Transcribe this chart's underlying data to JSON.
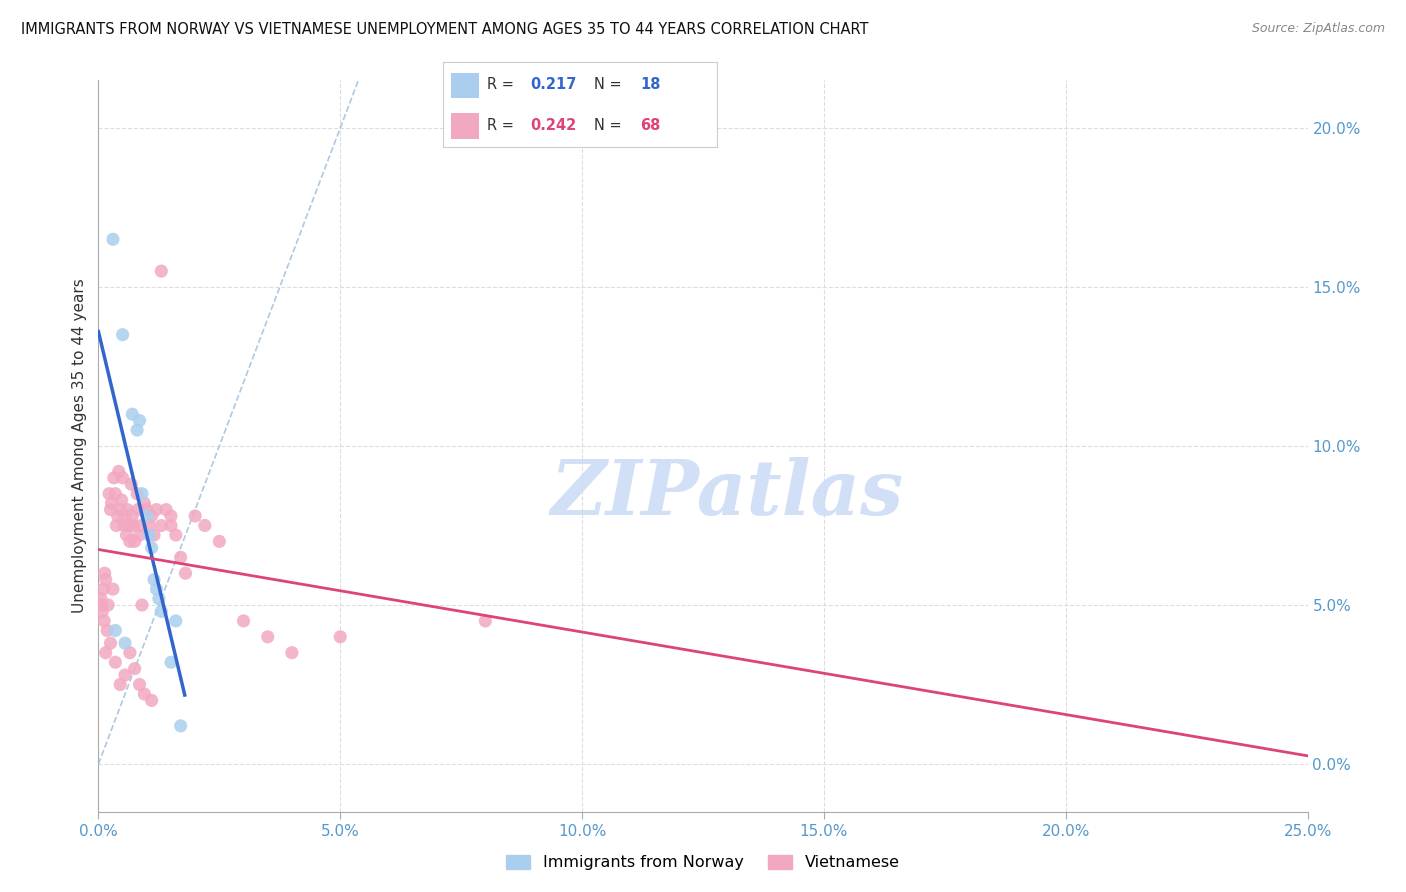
{
  "title": "IMMIGRANTS FROM NORWAY VS VIETNAMESE UNEMPLOYMENT AMONG AGES 35 TO 44 YEARS CORRELATION CHART",
  "source": "Source: ZipAtlas.com",
  "ylabel": "Unemployment Among Ages 35 to 44 years",
  "right_yticks": [
    0.0,
    5.0,
    10.0,
    15.0,
    20.0
  ],
  "right_yticklabels": [
    "0.0%",
    "5.0%",
    "10.0%",
    "15.0%",
    "20.0%"
  ],
  "xticks": [
    0.0,
    5.0,
    10.0,
    15.0,
    20.0,
    25.0
  ],
  "xticklabels": [
    "0.0%",
    "5.0%",
    "10.0%",
    "15.0%",
    "20.0%",
    "25.0%"
  ],
  "xlim": [
    0.0,
    25.0
  ],
  "ylim": [
    -1.5,
    21.5
  ],
  "norway_color": "#aacfee",
  "viet_color": "#f2a8c0",
  "norway_line_color": "#3366cc",
  "viet_line_color": "#dd4477",
  "diag_line_color": "#99bbdd",
  "grid_color": "#dddddd",
  "legend_norway_R": "0.217",
  "legend_norway_N": "18",
  "legend_viet_R": "0.242",
  "legend_viet_N": "68",
  "norway_x": [
    0.3,
    0.5,
    0.7,
    0.8,
    0.85,
    0.9,
    1.0,
    1.05,
    1.1,
    1.15,
    1.2,
    1.25,
    1.3,
    1.5,
    1.6,
    1.7,
    0.35,
    0.55
  ],
  "norway_y": [
    16.5,
    13.5,
    11.0,
    10.5,
    10.8,
    8.5,
    7.8,
    7.2,
    6.8,
    5.8,
    5.5,
    5.2,
    4.8,
    3.2,
    4.5,
    1.2,
    4.2,
    3.8
  ],
  "viet_x": [
    0.05,
    0.07,
    0.08,
    0.1,
    0.12,
    0.13,
    0.15,
    0.18,
    0.2,
    0.22,
    0.25,
    0.27,
    0.3,
    0.32,
    0.35,
    0.37,
    0.4,
    0.42,
    0.45,
    0.48,
    0.5,
    0.53,
    0.55,
    0.58,
    0.6,
    0.63,
    0.65,
    0.68,
    0.7,
    0.72,
    0.75,
    0.8,
    0.82,
    0.85,
    0.88,
    0.9,
    0.95,
    1.0,
    1.05,
    1.1,
    1.15,
    1.2,
    1.3,
    1.4,
    1.5,
    1.6,
    1.7,
    1.8,
    2.0,
    2.2,
    2.5,
    3.0,
    3.5,
    4.0,
    5.0,
    8.0,
    0.15,
    0.25,
    0.35,
    0.45,
    0.55,
    0.65,
    0.75,
    0.85,
    0.95,
    1.1,
    1.3,
    1.5
  ],
  "viet_y": [
    5.2,
    5.0,
    4.8,
    5.5,
    4.5,
    6.0,
    5.8,
    4.2,
    5.0,
    8.5,
    8.0,
    8.2,
    5.5,
    9.0,
    8.5,
    7.5,
    7.8,
    9.2,
    8.0,
    8.3,
    9.0,
    7.5,
    7.8,
    7.2,
    8.0,
    7.5,
    7.0,
    8.8,
    7.8,
    7.5,
    7.0,
    8.5,
    8.0,
    7.2,
    7.5,
    5.0,
    8.2,
    8.0,
    7.5,
    7.8,
    7.2,
    8.0,
    7.5,
    8.0,
    7.8,
    7.2,
    6.5,
    6.0,
    7.8,
    7.5,
    7.0,
    4.5,
    4.0,
    3.5,
    4.0,
    4.5,
    3.5,
    3.8,
    3.2,
    2.5,
    2.8,
    3.5,
    3.0,
    2.5,
    2.2,
    2.0,
    15.5,
    7.5
  ]
}
